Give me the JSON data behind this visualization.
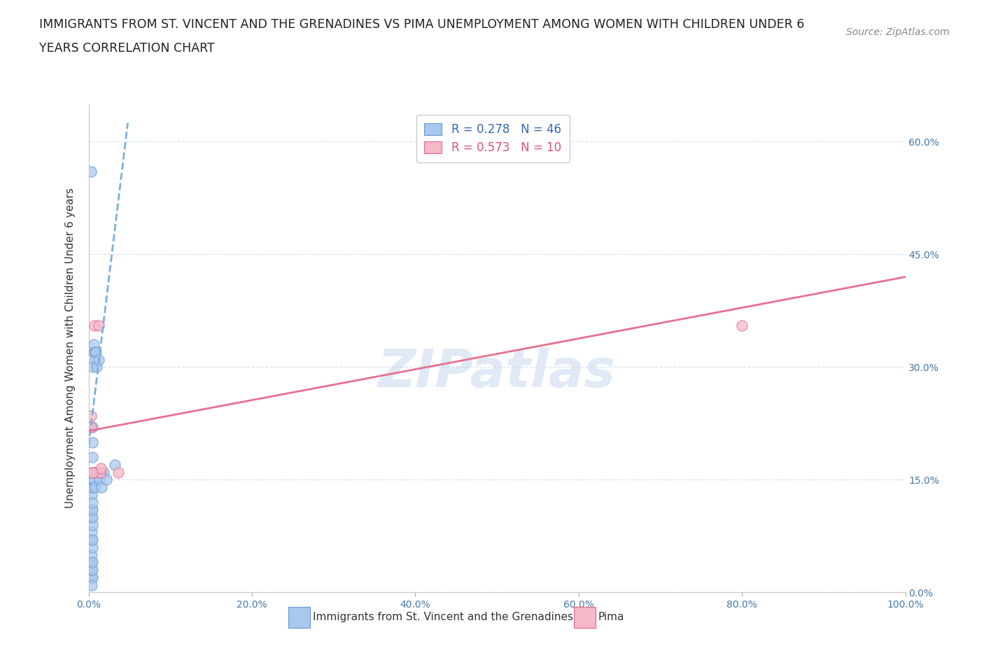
{
  "title_line1": "IMMIGRANTS FROM ST. VINCENT AND THE GRENADINES VS PIMA UNEMPLOYMENT AMONG WOMEN WITH CHILDREN UNDER 6",
  "title_line2": "YEARS CORRELATION CHART",
  "source": "Source: ZipAtlas.com",
  "ylabel": "Unemployment Among Women with Children Under 6 years",
  "blue_label": "Immigrants from St. Vincent and the Grenadines",
  "pink_label": "Pima",
  "blue_R": "R = 0.278",
  "blue_N": "N = 46",
  "pink_R": "R = 0.573",
  "pink_N": "N = 10",
  "xlim": [
    0.0,
    1.0
  ],
  "ylim": [
    0.0,
    0.65
  ],
  "xticks": [
    0.0,
    0.2,
    0.4,
    0.6,
    0.8,
    1.0
  ],
  "yticks": [
    0.0,
    0.15,
    0.3,
    0.45,
    0.6
  ],
  "blue_color": "#a8c8f0",
  "blue_edge_color": "#6699cc",
  "pink_color": "#f5b8c8",
  "pink_edge_color": "#e06888",
  "blue_trend_color": "#7ab0e0",
  "pink_trend_color": "#e87090",
  "blue_points_x": [
    0.003,
    0.003,
    0.003,
    0.004,
    0.004,
    0.004,
    0.004,
    0.004,
    0.004,
    0.004,
    0.004,
    0.004,
    0.005,
    0.005,
    0.005,
    0.005,
    0.005,
    0.005,
    0.005,
    0.005,
    0.005,
    0.005,
    0.005,
    0.005,
    0.005,
    0.005,
    0.005,
    0.005,
    0.006,
    0.006,
    0.006,
    0.007,
    0.007,
    0.008,
    0.008,
    0.009,
    0.01,
    0.01,
    0.012,
    0.013,
    0.015,
    0.016,
    0.018,
    0.022,
    0.032,
    0.004
  ],
  "blue_points_y": [
    0.56,
    0.14,
    0.15,
    0.02,
    0.03,
    0.04,
    0.05,
    0.07,
    0.08,
    0.1,
    0.11,
    0.13,
    0.02,
    0.03,
    0.04,
    0.06,
    0.07,
    0.09,
    0.1,
    0.11,
    0.12,
    0.14,
    0.15,
    0.16,
    0.18,
    0.2,
    0.22,
    0.3,
    0.32,
    0.33,
    0.15,
    0.16,
    0.32,
    0.31,
    0.14,
    0.32,
    0.3,
    0.16,
    0.31,
    0.15,
    0.16,
    0.14,
    0.16,
    0.15,
    0.17,
    0.01
  ],
  "pink_points_x": [
    0.003,
    0.003,
    0.006,
    0.007,
    0.012,
    0.014,
    0.015,
    0.036,
    0.8,
    0.005
  ],
  "pink_points_y": [
    0.22,
    0.235,
    0.16,
    0.355,
    0.355,
    0.16,
    0.165,
    0.16,
    0.355,
    0.16
  ],
  "blue_trend_x": [
    0.0,
    0.048
  ],
  "blue_trend_y": [
    0.195,
    0.625
  ],
  "pink_trend_x": [
    0.0,
    1.0
  ],
  "pink_trend_y": [
    0.215,
    0.42
  ],
  "grid_color": "#d8e4f0",
  "watermark_text": "ZIPatlas",
  "title_fontsize": 12.5,
  "axis_label_fontsize": 11,
  "tick_fontsize": 10,
  "legend_fontsize": 12,
  "source_fontsize": 10,
  "scatter_size": 120
}
